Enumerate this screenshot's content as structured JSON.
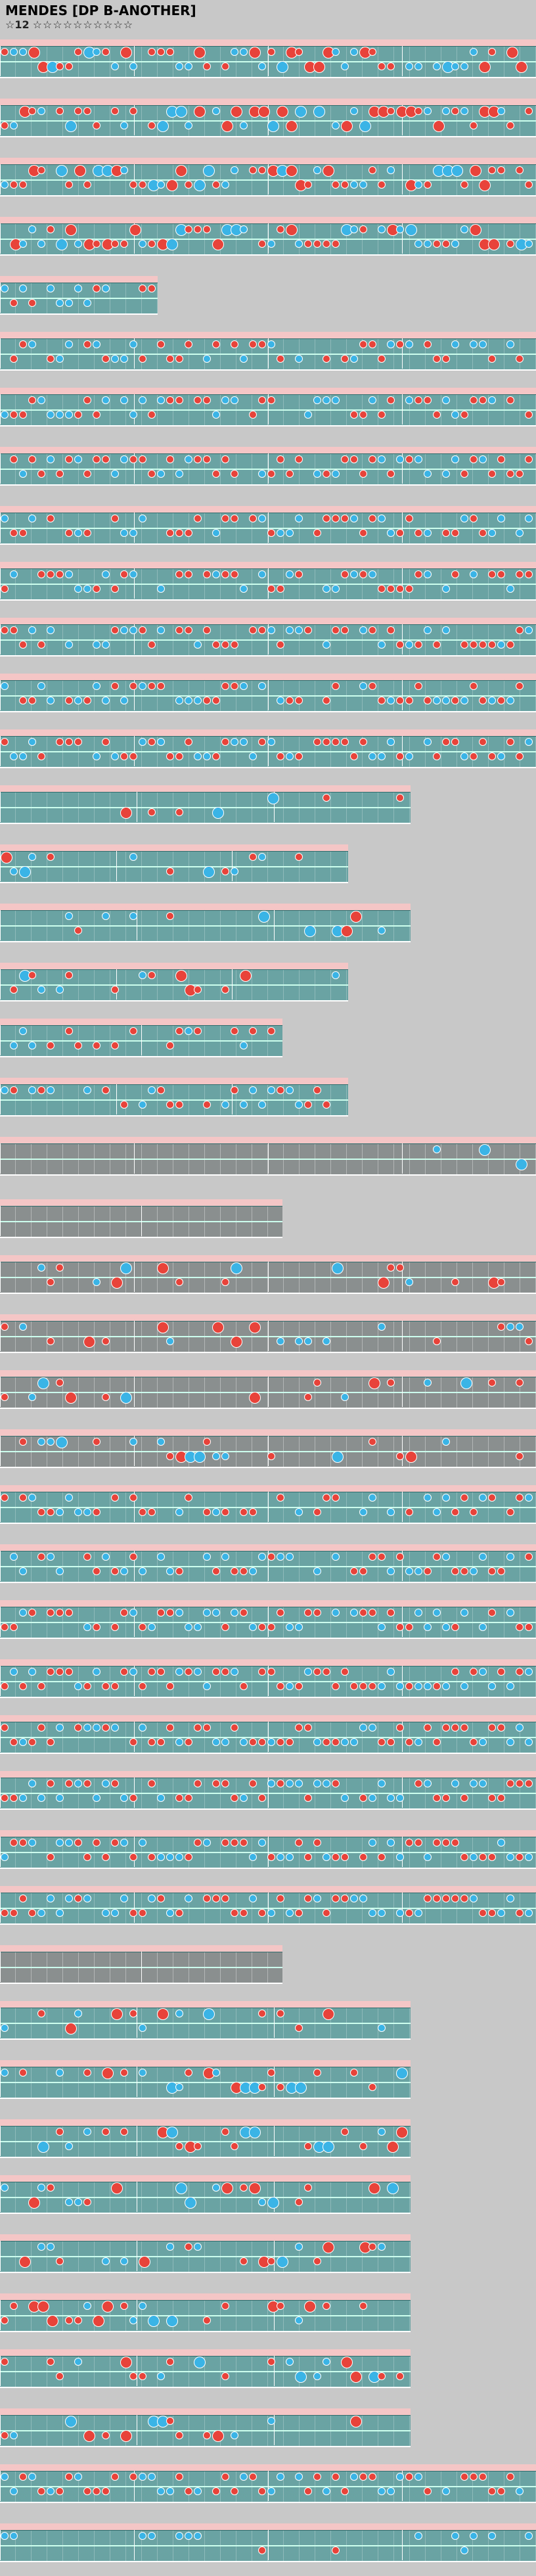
{
  "header": {
    "title": "MENDES [DP B-ANOTHER]",
    "difficulty_label": "☆12",
    "difficulty_stars": "☆☆☆☆☆☆☆☆☆☆"
  },
  "colors": {
    "red_note": "#e8433a",
    "blue_note": "#3ab4e6",
    "band": "#f4c6c6",
    "lane": "#6aa3a3"
  }
}
